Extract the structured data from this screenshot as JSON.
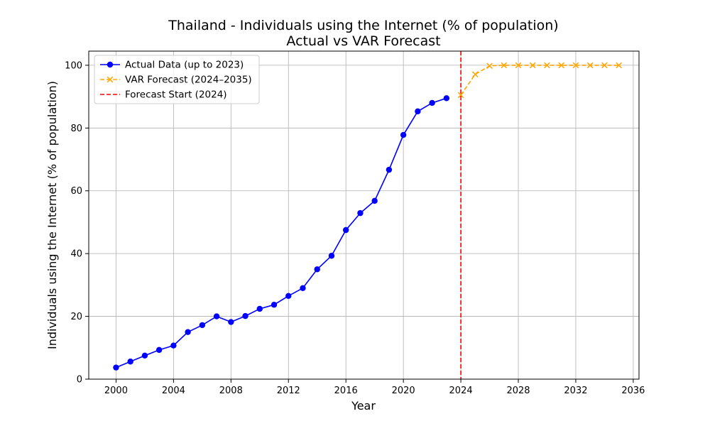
{
  "chart_data": {
    "type": "line",
    "title": "Thailand - Individuals using the Internet (% of population)",
    "subtitle": "Actual vs VAR Forecast",
    "xlabel": "Year",
    "ylabel": "Individuals using the Internet (% of population)",
    "xlim": [
      1998.1,
      2036.4
    ],
    "ylim": [
      0,
      104.5
    ],
    "x_ticks": [
      2000,
      2004,
      2008,
      2012,
      2016,
      2020,
      2024,
      2028,
      2032,
      2036
    ],
    "y_ticks": [
      0,
      20,
      40,
      60,
      80,
      100
    ],
    "grid": true,
    "legend_position": "top-left",
    "series": [
      {
        "name": "Actual Data (up to 2023)",
        "color": "#0000ff",
        "line_style": "solid",
        "marker": "circle",
        "x": [
          2000,
          2001,
          2002,
          2003,
          2004,
          2005,
          2006,
          2007,
          2008,
          2009,
          2010,
          2011,
          2012,
          2013,
          2014,
          2015,
          2016,
          2017,
          2018,
          2019,
          2020,
          2021,
          2022,
          2023
        ],
        "y": [
          3.7,
          5.6,
          7.5,
          9.3,
          10.7,
          15.0,
          17.2,
          20.0,
          18.2,
          20.1,
          22.4,
          23.7,
          26.5,
          29.0,
          35.0,
          39.3,
          47.5,
          52.9,
          56.8,
          66.7,
          77.8,
          85.3,
          88.0,
          89.5
        ]
      },
      {
        "name": "VAR Forecast (2024–2035)",
        "color": "#ffa500",
        "line_style": "dashed",
        "marker": "x",
        "x": [
          2024,
          2025,
          2026,
          2027,
          2028,
          2029,
          2030,
          2031,
          2032,
          2033,
          2034,
          2035
        ],
        "y": [
          90.5,
          97.1,
          99.8,
          100.0,
          100.0,
          100.0,
          100.0,
          100.0,
          100.0,
          100.0,
          100.0,
          100.0
        ]
      }
    ],
    "vertical_line": {
      "name": "Forecast Start (2024)",
      "x": 2024,
      "color": "#ff0000",
      "line_style": "dashed"
    }
  }
}
